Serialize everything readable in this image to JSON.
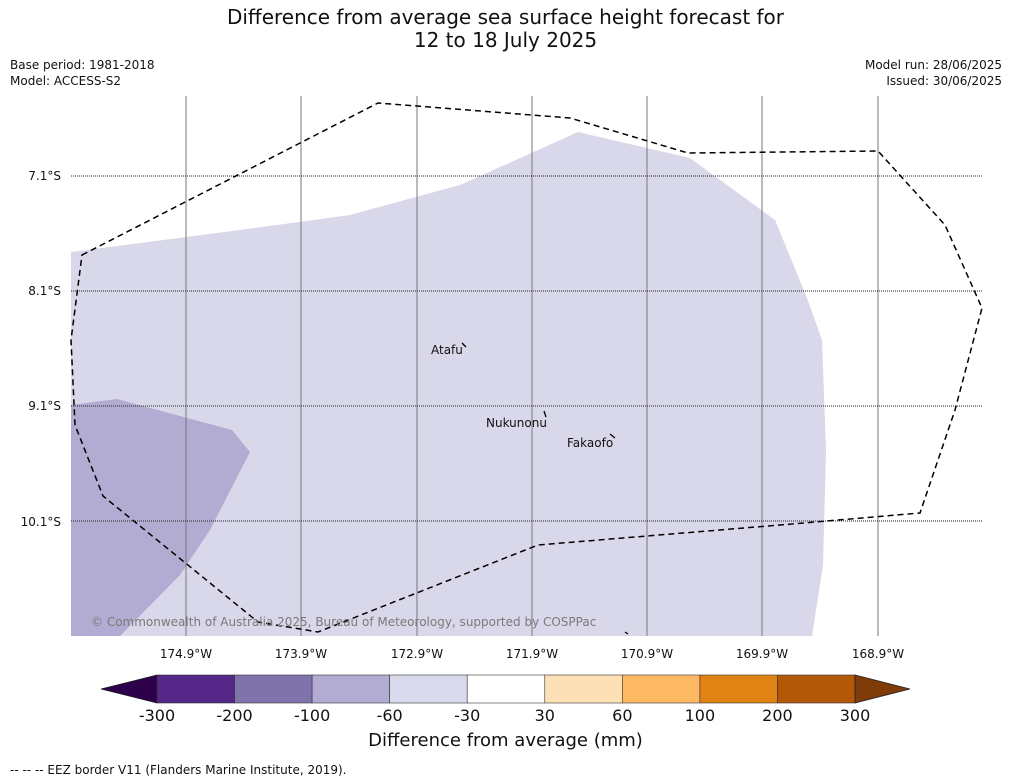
{
  "header": {
    "title_line1": "Difference from average sea surface height forecast for",
    "title_line2": "12 to 18 July 2025",
    "base_period": "Base period: 1981-2018",
    "model": "Model: ACCESS-S2",
    "model_run": "Model run: 28/06/2025",
    "issued": "Issued: 30/06/2025"
  },
  "map": {
    "lat_labels": [
      "7.1°S",
      "8.1°S",
      "9.1°S",
      "10.1°S"
    ],
    "lon_labels": [
      "174.9°W",
      "173.9°W",
      "172.9°W",
      "171.9°W",
      "170.9°W",
      "169.9°W",
      "168.9°W"
    ],
    "places": [
      "Atafu",
      "Nukunonu",
      "Fakaofo"
    ],
    "copyright": "© Commonwealth of Australia 2025, Bureau of Meteorology, supported by COSPPac",
    "anomaly_classes_shown": [
      {
        "range_mm": "-60 to -30",
        "color": "#d8d8ea"
      },
      {
        "range_mm": "-100 to -60",
        "color": "#b2acd2"
      }
    ]
  },
  "colorbar": {
    "ticks": [
      "-300",
      "-200",
      "-100",
      "-60",
      "-30",
      "30",
      "60",
      "100",
      "200",
      "300"
    ],
    "colors": [
      "#2d004b",
      "#542788",
      "#8073ac",
      "#b2abd2",
      "#d8daeb",
      "#ffffff",
      "#fee0b6",
      "#fdb863",
      "#e08214",
      "#b35806",
      "#7f3b08"
    ],
    "label": "Difference from average (mm)"
  },
  "footer": {
    "eez_note": "--  --  -- EEZ border V11 (Flanders Marine Institute, 2019)."
  }
}
